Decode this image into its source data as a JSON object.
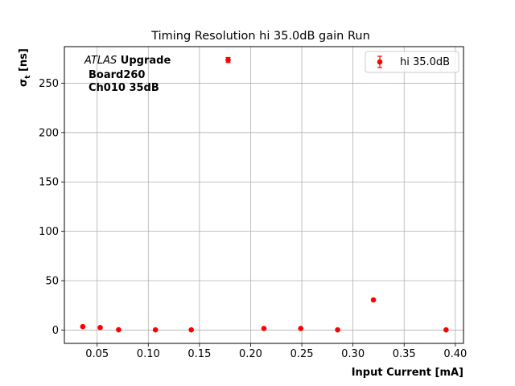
{
  "chart_data": {
    "type": "scatter",
    "title": "Timing Resolution hi 35.0dB gain Run",
    "xlabel": "Input Current [mA]",
    "ylabel_main": "σ",
    "ylabel_sub": "t",
    "ylabel_unit": " [ns]",
    "xlim": [
      0.018,
      0.408
    ],
    "ylim": [
      -13.5,
      287
    ],
    "xticks": [
      "0.05",
      "0.10",
      "0.15",
      "0.20",
      "0.25",
      "0.30",
      "0.35",
      "0.40"
    ],
    "xtick_values": [
      0.05,
      0.1,
      0.15,
      0.2,
      0.25,
      0.3,
      0.35,
      0.4
    ],
    "yticks": [
      "0",
      "50",
      "100",
      "150",
      "200",
      "250"
    ],
    "ytick_values": [
      0,
      50,
      100,
      150,
      200,
      250
    ],
    "grid": true,
    "legend_position": "top-right",
    "series": [
      {
        "name": "hi 35.0dB",
        "color": "#ff0000",
        "points": [
          {
            "x": 0.036,
            "y": 3.5,
            "err": 0.5
          },
          {
            "x": 0.053,
            "y": 2.5,
            "err": 0.5
          },
          {
            "x": 0.071,
            "y": 0.3,
            "err": 0.3
          },
          {
            "x": 0.107,
            "y": 0.2,
            "err": 0.2
          },
          {
            "x": 0.142,
            "y": 0.2,
            "err": 0.2
          },
          {
            "x": 0.178,
            "y": 273.5,
            "err": 2.5
          },
          {
            "x": 0.213,
            "y": 1.6,
            "err": 0.3
          },
          {
            "x": 0.249,
            "y": 1.6,
            "err": 0.3
          },
          {
            "x": 0.285,
            "y": 0.2,
            "err": 0.2
          },
          {
            "x": 0.32,
            "y": 30.5,
            "err": 0.8
          },
          {
            "x": 0.391,
            "y": 0.2,
            "err": 0.2
          }
        ]
      }
    ],
    "annotation": {
      "atlas": "ATLAS",
      "upgrade": " Upgrade",
      "line2": "Board260",
      "line3": "Ch010 35dB"
    }
  }
}
